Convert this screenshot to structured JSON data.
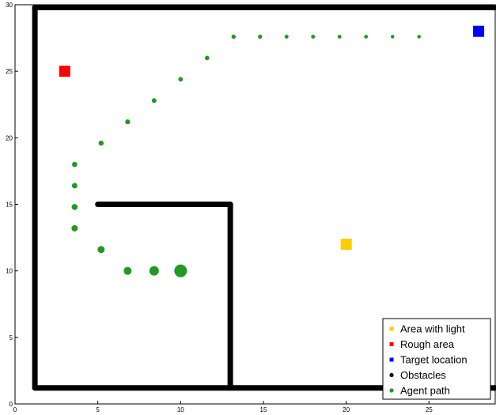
{
  "chart_data": {
    "type": "scatter",
    "title": "",
    "xlabel": "",
    "ylabel": "",
    "xlim": [
      0,
      29
    ],
    "ylim": [
      0,
      30
    ],
    "xticks": [
      0,
      5,
      10,
      15,
      20,
      25
    ],
    "yticks": [
      0,
      5,
      10,
      15,
      20,
      25,
      30
    ],
    "grid": false,
    "legend_position": "bottom-right",
    "series": [
      {
        "name": "Area with light",
        "color": "#ffcc00",
        "marker": "square",
        "points": [
          {
            "x": 20,
            "y": 12
          }
        ]
      },
      {
        "name": "Rough area",
        "color": "#ff0000",
        "marker": "square",
        "points": [
          {
            "x": 3,
            "y": 25
          }
        ]
      },
      {
        "name": "Target location",
        "color": "#0000ff",
        "marker": "square",
        "points": [
          {
            "x": 28,
            "y": 28
          }
        ]
      },
      {
        "name": "Obstacles",
        "color": "#000000",
        "marker": "line",
        "segments": [
          [
            [
              1.2,
              1.2
            ],
            [
              1.2,
              29.8
            ]
          ],
          [
            [
              1.2,
              29.8
            ],
            [
              29,
              29.8
            ]
          ],
          [
            [
              1.2,
              1.2
            ],
            [
              29,
              1.2
            ]
          ],
          [
            [
              5,
              15
            ],
            [
              13,
              15
            ]
          ],
          [
            [
              13,
              15
            ],
            [
              13,
              1.2
            ]
          ]
        ]
      },
      {
        "name": "Agent path",
        "color": "#229922",
        "marker": "circle",
        "points": [
          {
            "x": 10,
            "y": 10,
            "size": 8
          },
          {
            "x": 8.4,
            "y": 10,
            "size": 6
          },
          {
            "x": 6.8,
            "y": 10,
            "size": 5
          },
          {
            "x": 5.2,
            "y": 11.6,
            "size": 4.5
          },
          {
            "x": 3.6,
            "y": 13.2,
            "size": 4
          },
          {
            "x": 3.6,
            "y": 14.8,
            "size": 3.8
          },
          {
            "x": 3.6,
            "y": 16.4,
            "size": 3.5
          },
          {
            "x": 3.6,
            "y": 18,
            "size": 3.3
          },
          {
            "x": 5.2,
            "y": 19.6,
            "size": 3.2
          },
          {
            "x": 6.8,
            "y": 21.2,
            "size": 3.1
          },
          {
            "x": 8.4,
            "y": 22.8,
            "size": 3
          },
          {
            "x": 10,
            "y": 24.4,
            "size": 2.9
          },
          {
            "x": 11.6,
            "y": 26,
            "size": 2.8
          },
          {
            "x": 13.2,
            "y": 27.6,
            "size": 2.7
          },
          {
            "x": 14.8,
            "y": 27.6,
            "size": 2.6
          },
          {
            "x": 16.4,
            "y": 27.6,
            "size": 2.5
          },
          {
            "x": 18,
            "y": 27.6,
            "size": 2.5
          },
          {
            "x": 19.6,
            "y": 27.6,
            "size": 2.4
          },
          {
            "x": 21.2,
            "y": 27.6,
            "size": 2.4
          },
          {
            "x": 22.8,
            "y": 27.6,
            "size": 2.3
          },
          {
            "x": 24.4,
            "y": 27.6,
            "size": 2.3
          }
        ]
      }
    ]
  }
}
